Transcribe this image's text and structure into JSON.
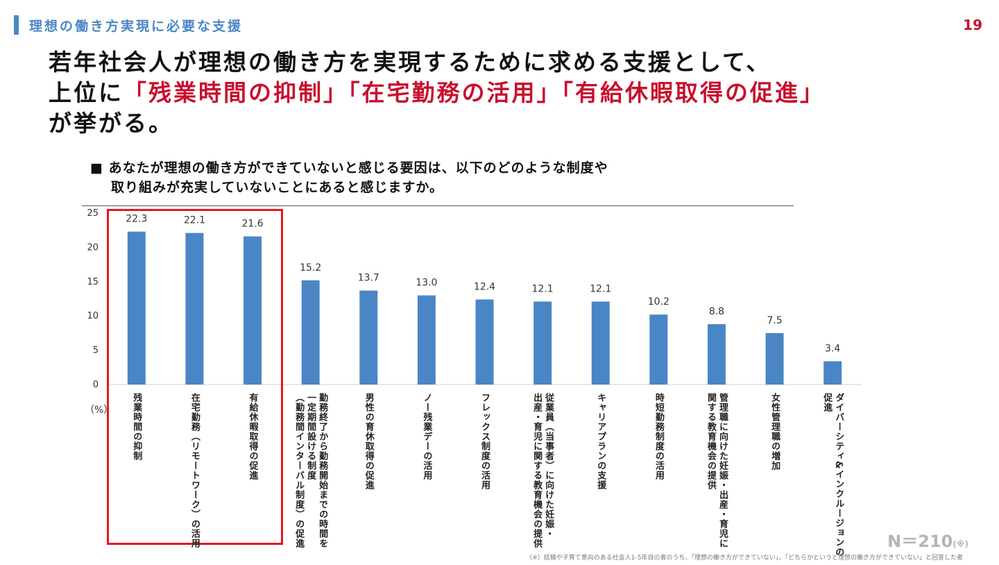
{
  "section_title": "理想の働き方実現に必要な支援",
  "page_number": "19",
  "headline": {
    "line1": "若年社会人が理想の働き方を実現するために求める支援として、",
    "line2_prefix": "上位に",
    "line2_highlight": "「残業時間の抑制」「在宅勤務の活用」「有給休暇取得の促進」",
    "line3": "が挙がる。"
  },
  "question": {
    "line1": "■ あなたが理想の働き方ができていないと感じる要因は、以下のどのような制度や",
    "line2": "取り組みが充実していないことにあると感じますか。"
  },
  "y_unit": "（%）",
  "sample_size": "N＝210",
  "sample_note": "(※)",
  "footnote": "（※）結婚や子育て意向のある社会人1-5年目の者のうち、「理想の働き方ができていない」、「どちらかというと理想の働き方ができていない」と回答した者",
  "colors": {
    "bar": "#4a86c5",
    "highlight_box": "#e8171d",
    "accent_red": "#c8102e",
    "section_blue": "#4a86c5"
  },
  "chart_data": {
    "type": "bar",
    "categories": [
      "残業時間の抑制",
      "在宅勤務（リモートワーク）の活用",
      "有給休暇取得の促進",
      "勤務終了から勤務開始までの時間を一定期間設ける制度（勤務間インターバル制度）の促進",
      "男性の育休取得の促進",
      "ノー残業デーの活用",
      "フレックス制度の活用",
      "従業員（当事者）に向けた妊娠・出産・育児に関する教育機会の提供",
      "キャリアプランの支援",
      "時短勤務制度の活用",
      "管理職に向けた妊娠・出産・育児に関する教育機会の提供",
      "女性管理職の増加",
      "ダイバーシティ&インクルージョンの促進"
    ],
    "label_lines": [
      [
        "残業時間の抑制"
      ],
      [
        "在宅勤務（リモートワーク）の活用"
      ],
      [
        "有給休暇取得の促進"
      ],
      [
        "勤務終了から勤務開始までの時間を",
        "一定期間設ける制度",
        "（勤務間インターバル制度）の促進"
      ],
      [
        "男性の育休取得の促進"
      ],
      [
        "ノー残業デーの活用"
      ],
      [
        "フレックス制度の活用"
      ],
      [
        "従業員（当事者）に向けた妊娠・",
        "出産・育児に関する教育機会の提供"
      ],
      [
        "キャリアプランの支援"
      ],
      [
        "時短勤務制度の活用"
      ],
      [
        "管理職に向けた妊娠・出産・育児に",
        "関する教育機会の提供"
      ],
      [
        "女性管理職の増加"
      ],
      [
        "ダイバーシティ&インクルージョンの",
        "促進"
      ]
    ],
    "values": [
      22.3,
      22.1,
      21.6,
      15.2,
      13.7,
      13.0,
      12.4,
      12.1,
      12.1,
      10.2,
      8.8,
      7.5,
      3.4
    ],
    "value_labels": [
      "22.3",
      "22.1",
      "21.6",
      "15.2",
      "13.7",
      "13.0",
      "12.4",
      "12.1",
      "12.1",
      "10.2",
      "8.8",
      "7.5",
      "3.4"
    ],
    "y_ticks": [
      0,
      5,
      10,
      15,
      20,
      25
    ],
    "ylim": [
      0,
      25
    ],
    "highlighted": [
      0,
      1,
      2
    ],
    "grid": false
  }
}
